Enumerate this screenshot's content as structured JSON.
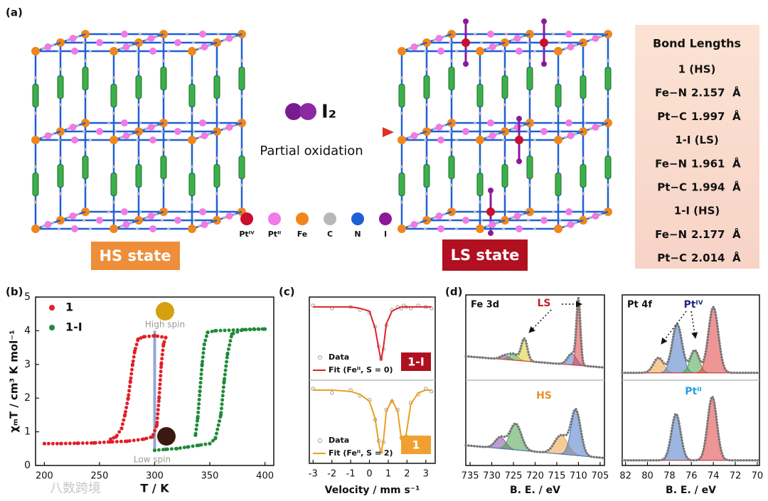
{
  "panel_a": {
    "label": "(a)",
    "reagent": "I₂",
    "arrow_label": "Partial oxidation",
    "legend": [
      {
        "label": "Ptᴵⱽ",
        "color": "#c8102e"
      },
      {
        "label": "Ptᴵᴵ",
        "color": "#f07ae6"
      },
      {
        "label": "Fe",
        "color": "#f0861c"
      },
      {
        "label": "C",
        "color": "#b8b8b8"
      },
      {
        "label": "N",
        "color": "#1f5fd6"
      },
      {
        "label": "I",
        "color": "#8a1a9a"
      }
    ],
    "hs_label": "HS state",
    "ls_label": "LS state",
    "table": {
      "title": "Bond Lengths",
      "unit": "Å",
      "rows": [
        {
          "heading": "1 (HS)"
        },
        {
          "bond": "Fe−N",
          "length": 2.157
        },
        {
          "bond": "Pt−C",
          "length": 1.997
        },
        {
          "heading": "1-I (LS)"
        },
        {
          "bond": "Fe−N",
          "length": 1.961
        },
        {
          "bond": "Pt−C",
          "length": 1.994
        },
        {
          "heading": "1-I (HS)"
        },
        {
          "bond": "Fe−N",
          "length": 2.177
        },
        {
          "bond": "Pt−C",
          "length": 2.014
        }
      ]
    }
  },
  "chart_data": [
    {
      "type": "scatter",
      "label": "(b)",
      "xlabel": "T / K",
      "ylabel": "χₘT / cm³ K mol⁻¹",
      "xlim": [
        192,
        408
      ],
      "xticks": [
        200,
        250,
        300,
        350,
        400
      ],
      "ylim": [
        0,
        5
      ],
      "yticks": [
        0,
        1,
        2,
        3,
        4,
        5
      ],
      "annotations": [
        "High spin",
        "Low spin"
      ],
      "series": [
        {
          "name": "1",
          "color": "#e0202a",
          "x": [
            200,
            215,
            230,
            245,
            260,
            275,
            290,
            298,
            302,
            304,
            306,
            308,
            310,
            300,
            290,
            285,
            282,
            280,
            278,
            276,
            273,
            270,
            265,
            260
          ],
          "values": [
            0.65,
            0.65,
            0.66,
            0.67,
            0.7,
            0.72,
            0.78,
            0.85,
            1.2,
            2.0,
            3.0,
            3.6,
            3.8,
            3.85,
            3.82,
            3.75,
            3.4,
            3.0,
            2.5,
            2.0,
            1.5,
            1.1,
            0.85,
            0.78
          ]
        },
        {
          "name": "1-I",
          "color": "#1f8a3a",
          "x": [
            300,
            310,
            320,
            330,
            340,
            350,
            355,
            360,
            363,
            366,
            370,
            380,
            390,
            400,
            355,
            348,
            345,
            343,
            341,
            339,
            337
          ],
          "values": [
            0.45,
            0.48,
            0.5,
            0.55,
            0.6,
            0.65,
            0.8,
            1.5,
            2.5,
            3.3,
            3.9,
            4.03,
            4.05,
            4.05,
            4.0,
            3.95,
            3.6,
            3.0,
            2.2,
            1.4,
            0.9
          ]
        }
      ]
    },
    {
      "type": "spectrum",
      "label": "(c)",
      "xlabel": "Velocity / mm s⁻¹",
      "xlim": [
        -3.2,
        3.5
      ],
      "xticks": [
        -3,
        -2,
        -1,
        0,
        1,
        2,
        3
      ],
      "ylim": [
        0.5,
        1.05
      ],
      "x": [
        -3,
        -2,
        -1,
        -0.5,
        0,
        0.3,
        0.5,
        0.62,
        0.75,
        0.9,
        1.2,
        1.5,
        1.7,
        1.82,
        1.95,
        2.2,
        2.6,
        3,
        3.3
      ],
      "panels": [
        {
          "tag": "1-I",
          "tag_color": "#b01020",
          "series": [
            {
              "name": "Data",
              "color": "#9a9a9a",
              "values": [
                1.01,
                0.99,
                1.0,
                0.98,
                0.96,
                0.86,
                0.72,
                0.63,
                0.7,
                0.87,
                0.98,
                1.0,
                0.99,
                1.01,
                1.0,
                0.99,
                1.01,
                1.0,
                0.99
              ]
            },
            {
              "name": "Fit (Feᴵᴵ, S = 0)",
              "color": "#e0202a",
              "values": [
                1,
                1,
                1,
                0.99,
                0.97,
                0.85,
                0.7,
                0.62,
                0.72,
                0.88,
                0.97,
                0.99,
                1,
                1,
                1,
                1,
                1,
                1,
                1
              ]
            }
          ]
        },
        {
          "tag": "1",
          "tag_color": "#f0a030",
          "series": [
            {
              "name": "Data",
              "color": "#9a9a9a",
              "values": [
                1.01,
                0.98,
                1.0,
                0.96,
                0.93,
                0.79,
                0.64,
                0.56,
                0.63,
                0.86,
                0.92,
                0.86,
                0.66,
                0.56,
                0.67,
                0.91,
                0.97,
                1.01,
                0.99
              ]
            },
            {
              "name": "Fit (Feᴵᴵ, S = 2)",
              "color": "#e8a020",
              "values": [
                1,
                1,
                0.99,
                0.97,
                0.92,
                0.8,
                0.62,
                0.55,
                0.65,
                0.85,
                0.93,
                0.85,
                0.65,
                0.55,
                0.68,
                0.9,
                0.98,
                1,
                1
              ]
            }
          ]
        }
      ]
    },
    {
      "type": "xps",
      "label": "(d)",
      "xlabel": "B. E. / eV",
      "ylim": [
        0,
        1.1
      ],
      "plots": [
        {
          "title": "Fe 3d",
          "xlim": [
            736,
            704
          ],
          "xticks": [
            735,
            730,
            725,
            720,
            715,
            710,
            705
          ],
          "rows": [
            {
              "label": "LS",
              "label_color": "#c0202a",
              "background": [
                0.3,
                0.15
              ],
              "peaks": [
                {
                  "center": 727,
                  "height": 0.05,
                  "width": 1.0,
                  "color": "#8a4ab0"
                },
                {
                  "center": 725,
                  "height": 0.08,
                  "width": 1.0,
                  "color": "#4aa04a"
                },
                {
                  "center": 722.5,
                  "height": 0.3,
                  "width": 0.7,
                  "color": "#d8d030"
                },
                {
                  "center": 711.5,
                  "height": 0.15,
                  "width": 1.0,
                  "color": "#4a7ac8"
                },
                {
                  "center": 710,
                  "height": 0.85,
                  "width": 0.45,
                  "color": "#e04040"
                }
              ]
            },
            {
              "label": "HS",
              "label_color": "#e8902a",
              "background": [
                0.25,
                0.08
              ],
              "peaks": [
                {
                  "center": 728,
                  "height": 0.15,
                  "width": 1.2,
                  "color": "#8a4ab0"
                },
                {
                  "center": 724.5,
                  "height": 0.35,
                  "width": 1.3,
                  "color": "#4aa04a"
                },
                {
                  "center": 714,
                  "height": 0.25,
                  "width": 1.5,
                  "color": "#f0a040"
                },
                {
                  "center": 710.6,
                  "height": 0.6,
                  "width": 1.1,
                  "color": "#4a7ac8"
                }
              ]
            }
          ]
        },
        {
          "title": "Pt 4f",
          "xlim": [
            82.3,
            69.8
          ],
          "xticks": [
            82,
            80,
            78,
            76,
            74,
            72,
            70
          ],
          "rows": [
            {
              "label": "Ptᴵⱽ",
              "label_color": "#1a2a80",
              "background": [
                0.08,
                0.08
              ],
              "peaks": [
                {
                  "center": 79,
                  "height": 0.2,
                  "width": 0.45,
                  "color": "#f0a040"
                },
                {
                  "center": 77.3,
                  "height": 0.65,
                  "width": 0.45,
                  "color": "#4a7ac8"
                },
                {
                  "center": 75.7,
                  "height": 0.3,
                  "width": 0.4,
                  "color": "#4aa04a"
                },
                {
                  "center": 74,
                  "height": 0.88,
                  "width": 0.45,
                  "color": "#e04040"
                }
              ]
            },
            {
              "label": "Ptᴵᴵ",
              "label_color": "#20a0e0",
              "background": [
                0.05,
                0.05
              ],
              "peaks": [
                {
                  "center": 77.4,
                  "height": 0.62,
                  "width": 0.42,
                  "color": "#4a7ac8"
                },
                {
                  "center": 74.1,
                  "height": 0.85,
                  "width": 0.42,
                  "color": "#e04040"
                }
              ]
            }
          ]
        }
      ]
    }
  ],
  "watermark": "八数跨境"
}
